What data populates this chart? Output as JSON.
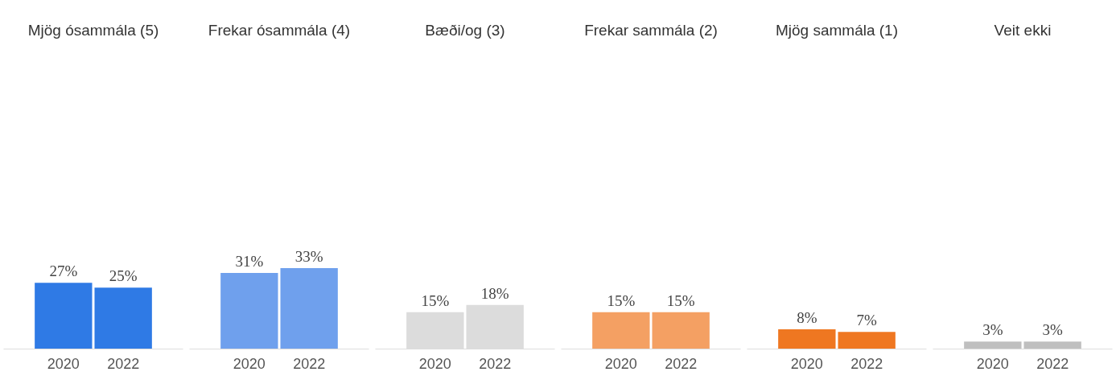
{
  "chart_data": [
    {
      "type": "bar",
      "title": "Mjög ósammála (5)",
      "categories": [
        "2020",
        "2022"
      ],
      "values": [
        27,
        25
      ],
      "color": "#2f7ae5",
      "value_labels": [
        "27%",
        "25%"
      ]
    },
    {
      "type": "bar",
      "title": "Frekar ósammála (4)",
      "categories": [
        "2020",
        "2022"
      ],
      "values": [
        31,
        33
      ],
      "color": "#6fa0ed",
      "value_labels": [
        "31%",
        "33%"
      ]
    },
    {
      "type": "bar",
      "title": "Bæði/og (3)",
      "categories": [
        "2020",
        "2022"
      ],
      "values": [
        15,
        18
      ],
      "color": "#dcdcdc",
      "value_labels": [
        "15%",
        "18%"
      ]
    },
    {
      "type": "bar",
      "title": "Frekar sammála (2)",
      "categories": [
        "2020",
        "2022"
      ],
      "values": [
        15,
        15
      ],
      "color": "#f4a063",
      "value_labels": [
        "15%",
        "15%"
      ]
    },
    {
      "type": "bar",
      "title": "Mjög sammála (1)",
      "categories": [
        "2020",
        "2022"
      ],
      "values": [
        8,
        7
      ],
      "color": "#ef7721",
      "value_labels": [
        "8%",
        "7%"
      ]
    },
    {
      "type": "bar",
      "title": "Veit ekki",
      "categories": [
        "2020",
        "2022"
      ],
      "values": [
        3,
        3
      ],
      "color": "#bfbfbf",
      "value_labels": [
        "3%",
        "3%"
      ]
    }
  ]
}
